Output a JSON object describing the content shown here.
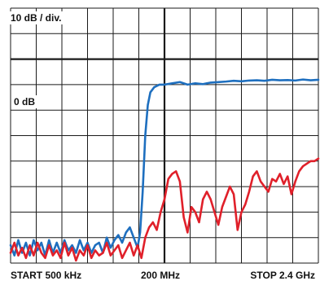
{
  "chart_data": {
    "type": "line",
    "title": "",
    "xlabel": "",
    "ylabel": "",
    "scale_label": "10 dB / div.",
    "ref_label": "0 dB",
    "x_ticks": {
      "start": "START 500 kHz",
      "mid": "200 MHz",
      "stop": "STOP 2.4 GHz"
    },
    "x_divisions": 12,
    "y_divisions": 10,
    "xlim": [
      0,
      12
    ],
    "ylim": [
      -80,
      20
    ],
    "y_major_value": 0,
    "x_major_value": 6,
    "grid": true,
    "colors": {
      "grid": "#1a1a1a",
      "series_blue": "#1e6fbf",
      "series_red": "#e0202a"
    },
    "series": [
      {
        "color_key": "series_blue",
        "x": [
          0,
          0.15,
          0.3,
          0.45,
          0.6,
          0.75,
          0.9,
          1.05,
          1.2,
          1.35,
          1.5,
          1.65,
          1.8,
          1.95,
          2.1,
          2.25,
          2.4,
          2.55,
          2.7,
          2.85,
          3.0,
          3.15,
          3.3,
          3.45,
          3.6,
          3.75,
          3.9,
          4.05,
          4.2,
          4.35,
          4.5,
          4.65,
          4.8,
          4.95,
          5.05,
          5.15,
          5.25,
          5.35,
          5.45,
          5.6,
          5.8,
          6.0,
          6.3,
          6.6,
          6.9,
          7.2,
          7.5,
          7.8,
          8.1,
          8.4,
          8.7,
          9.0,
          9.3,
          9.6,
          9.9,
          10.2,
          10.5,
          10.8,
          11.1,
          11.4,
          11.7,
          12.0
        ],
        "y": [
          -73,
          -77,
          -71,
          -76,
          -72,
          -77,
          -71,
          -75,
          -72,
          -77,
          -71,
          -76,
          -72,
          -76,
          -71,
          -75,
          -73,
          -76,
          -71,
          -75,
          -72,
          -76,
          -73,
          -72,
          -76,
          -70,
          -74,
          -71,
          -69,
          -72,
          -68,
          -66,
          -70,
          -74,
          -68,
          -52,
          -30,
          -18,
          -13,
          -11,
          -10,
          -10,
          -9.5,
          -9,
          -10,
          -9.5,
          -9.8,
          -9.2,
          -9,
          -8.8,
          -8.5,
          -8.7,
          -8.4,
          -8.3,
          -8.5,
          -8.1,
          -8.3,
          -8.2,
          -8.4,
          -8.0,
          -8.3,
          -8.1
        ]
      },
      {
        "color_key": "series_red",
        "x": [
          0,
          0.15,
          0.3,
          0.45,
          0.6,
          0.75,
          0.9,
          1.05,
          1.2,
          1.35,
          1.5,
          1.65,
          1.8,
          1.95,
          2.1,
          2.25,
          2.4,
          2.55,
          2.7,
          2.85,
          3.0,
          3.15,
          3.3,
          3.45,
          3.6,
          3.75,
          3.9,
          4.05,
          4.2,
          4.35,
          4.5,
          4.65,
          4.8,
          4.95,
          5.1,
          5.25,
          5.4,
          5.55,
          5.7,
          5.85,
          6.0,
          6.15,
          6.3,
          6.45,
          6.6,
          6.75,
          6.9,
          7.05,
          7.2,
          7.35,
          7.5,
          7.65,
          7.8,
          7.95,
          8.1,
          8.25,
          8.4,
          8.55,
          8.7,
          8.85,
          9.0,
          9.15,
          9.3,
          9.45,
          9.6,
          9.75,
          9.9,
          10.05,
          10.2,
          10.35,
          10.5,
          10.65,
          10.8,
          10.95,
          11.1,
          11.25,
          11.4,
          11.55,
          11.7,
          11.85,
          12.0
        ],
        "y": [
          -76,
          -72,
          -77,
          -74,
          -78,
          -73,
          -77,
          -72,
          -76,
          -78,
          -73,
          -77,
          -75,
          -78,
          -72,
          -77,
          -74,
          -79,
          -75,
          -77,
          -73,
          -78,
          -75,
          -77,
          -76,
          -72,
          -77,
          -75,
          -73,
          -78,
          -75,
          -72,
          -77,
          -73,
          -78,
          -70,
          -66,
          -64,
          -67,
          -60,
          -55,
          -47,
          -45,
          -44,
          -48,
          -62,
          -68,
          -58,
          -60,
          -64,
          -55,
          -52,
          -55,
          -60,
          -65,
          -58,
          -54,
          -50,
          -53,
          -67,
          -60,
          -57,
          -52,
          -46,
          -44,
          -48,
          -50,
          -52,
          -47,
          -48,
          -45,
          -49,
          -46,
          -53,
          -48,
          -44,
          -42,
          -41,
          -40,
          -40,
          -39
        ]
      }
    ]
  }
}
